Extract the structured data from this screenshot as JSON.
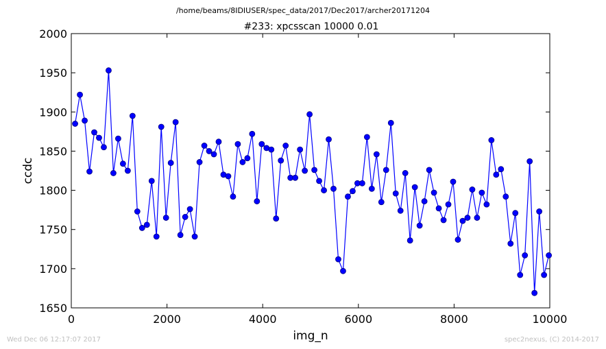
{
  "suptitle": "/home/beams/8IDIUSER/spec_data/2017/Dec2017/archer20171204",
  "footer": {
    "timestamp": "Wed Dec 06 12:17:07 2017",
    "credit": "spec2nexus, (C) 2014-2017"
  },
  "colors": {
    "series": "#0000ff",
    "marker_fill": "#0000ff",
    "marker_edge": "#000080",
    "axes": "#000000",
    "footer": "#c0c0c0"
  },
  "chart_data": {
    "type": "line",
    "title": "#233: xpcsscan 10000 0.01",
    "xlabel": "img_n",
    "ylabel": "ccdc",
    "xlim": [
      0,
      10000
    ],
    "ylim": [
      1650,
      2000
    ],
    "xticks": [
      0,
      2000,
      4000,
      6000,
      8000,
      10000
    ],
    "yticks": [
      1650,
      1700,
      1750,
      1800,
      1850,
      1900,
      1950,
      2000
    ],
    "xtick_labels": [
      "0",
      "2000",
      "4000",
      "6000",
      "8000",
      "10000"
    ],
    "ytick_labels": [
      "1650",
      "1700",
      "1750",
      "1800",
      "1850",
      "1900",
      "1950",
      "2000"
    ],
    "grid": false,
    "legend": "none",
    "marker": "circle",
    "series": [
      {
        "x": [
          80,
          180,
          280,
          380,
          480,
          580,
          680,
          780,
          880,
          980,
          1080,
          1180,
          1280,
          1380,
          1480,
          1580,
          1680,
          1780,
          1880,
          1980,
          2080,
          2180,
          2280,
          2380,
          2480,
          2580,
          2680,
          2780,
          2880,
          2980,
          3080,
          3180,
          3280,
          3380,
          3480,
          3580,
          3680,
          3780,
          3880,
          3980,
          4080,
          4180,
          4280,
          4380,
          4480,
          4580,
          4680,
          4780,
          4880,
          4980,
          5080,
          5180,
          5280,
          5380,
          5480,
          5580,
          5680,
          5780,
          5880,
          5980,
          6080,
          6180,
          6280,
          6380,
          6480,
          6580,
          6680,
          6780,
          6880,
          6980,
          7080,
          7180,
          7280,
          7380,
          7480,
          7580,
          7680,
          7780,
          7880,
          7980,
          8080,
          8180,
          8280,
          8380,
          8480,
          8580,
          8680,
          8780,
          8880,
          8980,
          9080,
          9180,
          9280,
          9380,
          9480,
          9580,
          9680,
          9780,
          9880,
          9980
        ],
        "y": [
          1885,
          1922,
          1889,
          1824,
          1874,
          1867,
          1855,
          1953,
          1822,
          1866,
          1834,
          1825,
          1895,
          1773,
          1752,
          1756,
          1812,
          1741,
          1881,
          1765,
          1835,
          1887,
          1743,
          1766,
          1776,
          1741,
          1836,
          1857,
          1850,
          1846,
          1862,
          1820,
          1818,
          1792,
          1859,
          1836,
          1841,
          1872,
          1786,
          1859,
          1854,
          1852,
          1764,
          1838,
          1857,
          1816,
          1816,
          1852,
          1825,
          1897,
          1826,
          1812,
          1800,
          1865,
          1802,
          1712,
          1697,
          1792,
          1799,
          1809,
          1809,
          1868,
          1802,
          1846,
          1785,
          1826,
          1886,
          1796,
          1774,
          1822,
          1736,
          1804,
          1755,
          1786,
          1826,
          1797,
          1777,
          1762,
          1782,
          1811,
          1737,
          1761,
          1765,
          1801,
          1765,
          1797,
          1782,
          1864,
          1820,
          1827,
          1792,
          1732,
          1771,
          1692,
          1717,
          1837,
          1669,
          1773,
          1692,
          1717
        ]
      }
    ]
  }
}
